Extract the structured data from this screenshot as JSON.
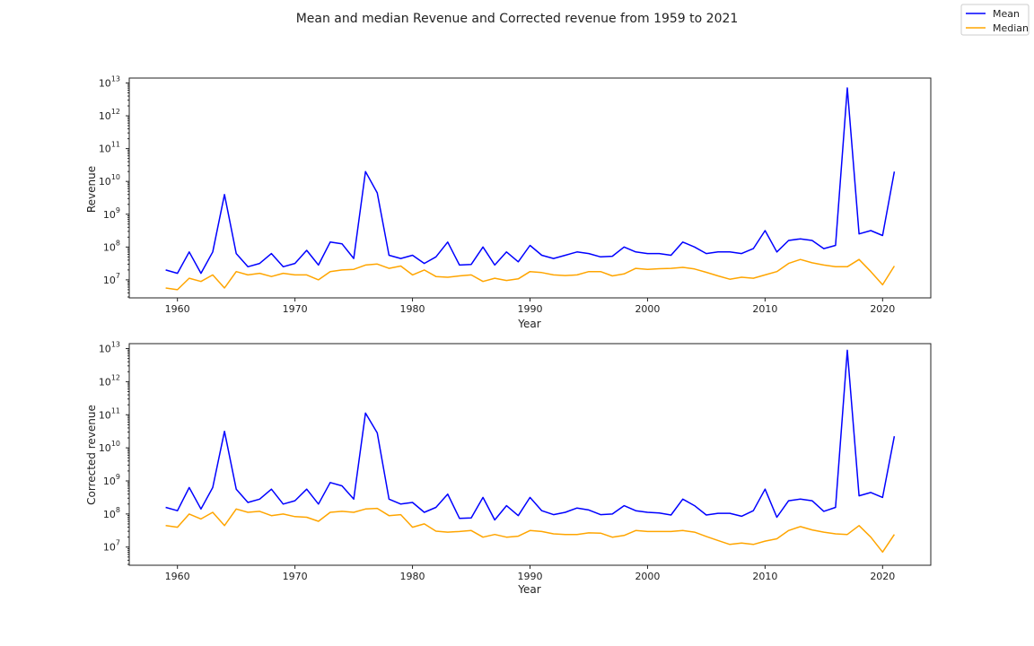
{
  "chart_data": [
    {
      "type": "line",
      "title": "Mean and median Revenue and Corrected revenue from 1959 to 2021",
      "xlabel": "Year",
      "ylabel": "Revenue",
      "yscale": "log",
      "xlim": [
        1955.9,
        2024.1
      ],
      "ylim_exp": [
        6.45,
        13.15
      ],
      "xticks": [
        1960,
        1970,
        1980,
        1990,
        2000,
        2010,
        2020
      ],
      "ytick_exponents": [
        7,
        8,
        9,
        10,
        11,
        12,
        13
      ],
      "legend": "top-right",
      "x": [
        1959,
        1960,
        1961,
        1962,
        1963,
        1964,
        1965,
        1966,
        1967,
        1968,
        1969,
        1970,
        1971,
        1972,
        1973,
        1974,
        1975,
        1976,
        1977,
        1978,
        1979,
        1980,
        1981,
        1982,
        1983,
        1984,
        1985,
        1986,
        1987,
        1988,
        1989,
        1990,
        1991,
        1992,
        1993,
        1994,
        1995,
        1996,
        1997,
        1998,
        1999,
        2000,
        2001,
        2002,
        2003,
        2004,
        2005,
        2006,
        2007,
        2008,
        2009,
        2010,
        2011,
        2012,
        2013,
        2014,
        2015,
        2016,
        2017,
        2018,
        2019,
        2020,
        2021
      ],
      "series": [
        {
          "name": "Mean",
          "color": "#0000ff",
          "log10": [
            7.3,
            7.2,
            7.85,
            7.2,
            7.85,
            9.6,
            7.8,
            7.4,
            7.5,
            7.8,
            7.4,
            7.5,
            7.9,
            7.45,
            8.15,
            8.1,
            7.65,
            10.3,
            9.65,
            7.75,
            7.65,
            7.75,
            7.5,
            7.7,
            8.15,
            7.45,
            7.47,
            8.0,
            7.45,
            7.85,
            7.55,
            8.05,
            7.75,
            7.65,
            7.75,
            7.85,
            7.8,
            7.7,
            7.72,
            8.0,
            7.85,
            7.8,
            7.8,
            7.75,
            8.15,
            8.0,
            7.8,
            7.85,
            7.85,
            7.8,
            7.95,
            8.5,
            7.85,
            8.2,
            8.25,
            8.2,
            7.95,
            8.05,
            12.85,
            8.4,
            8.5,
            8.35,
            10.3
          ]
        },
        {
          "name": "Median",
          "color": "#ffa500",
          "log10": [
            6.75,
            6.7,
            7.05,
            6.95,
            7.15,
            6.75,
            7.25,
            7.15,
            7.2,
            7.1,
            7.2,
            7.15,
            7.15,
            7.0,
            7.25,
            7.3,
            7.32,
            7.45,
            7.48,
            7.35,
            7.42,
            7.15,
            7.3,
            7.1,
            7.08,
            7.12,
            7.15,
            6.95,
            7.05,
            6.98,
            7.03,
            7.25,
            7.22,
            7.15,
            7.13,
            7.15,
            7.25,
            7.25,
            7.12,
            7.18,
            7.35,
            7.32,
            7.34,
            7.35,
            7.38,
            7.33,
            7.23,
            7.12,
            7.02,
            7.08,
            7.05,
            7.15,
            7.25,
            7.5,
            7.62,
            7.52,
            7.45,
            7.4,
            7.4,
            7.62,
            7.25,
            6.85,
            7.42
          ]
        }
      ]
    },
    {
      "type": "line",
      "xlabel": "Year",
      "ylabel": "Corrected revenue",
      "yscale": "log",
      "xlim": [
        1955.9,
        2024.1
      ],
      "ylim_exp": [
        6.45,
        13.15
      ],
      "xticks": [
        1960,
        1970,
        1980,
        1990,
        2000,
        2010,
        2020
      ],
      "ytick_exponents": [
        7,
        8,
        9,
        10,
        11,
        12,
        13
      ],
      "x": [
        1959,
        1960,
        1961,
        1962,
        1963,
        1964,
        1965,
        1966,
        1967,
        1968,
        1969,
        1970,
        1971,
        1972,
        1973,
        1974,
        1975,
        1976,
        1977,
        1978,
        1979,
        1980,
        1981,
        1982,
        1983,
        1984,
        1985,
        1986,
        1987,
        1988,
        1989,
        1990,
        1991,
        1992,
        1993,
        1994,
        1995,
        1996,
        1997,
        1998,
        1999,
        2000,
        2001,
        2002,
        2003,
        2004,
        2005,
        2006,
        2007,
        2008,
        2009,
        2010,
        2011,
        2012,
        2013,
        2014,
        2015,
        2016,
        2017,
        2018,
        2019,
        2020,
        2021
      ],
      "series": [
        {
          "name": "Mean",
          "color": "#0000ff",
          "log10": [
            8.2,
            8.1,
            8.8,
            8.15,
            8.8,
            10.5,
            8.75,
            8.35,
            8.45,
            8.75,
            8.3,
            8.4,
            8.75,
            8.3,
            8.95,
            8.85,
            8.45,
            11.05,
            10.45,
            8.45,
            8.3,
            8.35,
            8.05,
            8.2,
            8.6,
            7.87,
            7.88,
            8.5,
            7.82,
            8.25,
            7.95,
            8.5,
            8.1,
            7.98,
            8.05,
            8.18,
            8.12,
            7.98,
            8.0,
            8.25,
            8.1,
            8.05,
            8.03,
            7.97,
            8.45,
            8.25,
            7.97,
            8.02,
            8.02,
            7.93,
            8.1,
            8.75,
            7.9,
            8.4,
            8.45,
            8.4,
            8.08,
            8.2,
            12.95,
            8.55,
            8.65,
            8.5,
            10.35
          ]
        },
        {
          "name": "Median",
          "color": "#ffa500",
          "log10": [
            7.65,
            7.6,
            8.0,
            7.85,
            8.05,
            7.65,
            8.15,
            8.05,
            8.08,
            7.95,
            8.0,
            7.92,
            7.9,
            7.78,
            8.05,
            8.08,
            8.05,
            8.15,
            8.17,
            7.95,
            7.98,
            7.6,
            7.7,
            7.48,
            7.45,
            7.47,
            7.5,
            7.3,
            7.38,
            7.3,
            7.33,
            7.5,
            7.47,
            7.4,
            7.38,
            7.38,
            7.43,
            7.42,
            7.3,
            7.35,
            7.5,
            7.47,
            7.47,
            7.47,
            7.5,
            7.45,
            7.32,
            7.2,
            7.08,
            7.12,
            7.08,
            7.18,
            7.25,
            7.5,
            7.62,
            7.52,
            7.45,
            7.4,
            7.38,
            7.65,
            7.3,
            6.85,
            7.38
          ]
        }
      ]
    }
  ]
}
